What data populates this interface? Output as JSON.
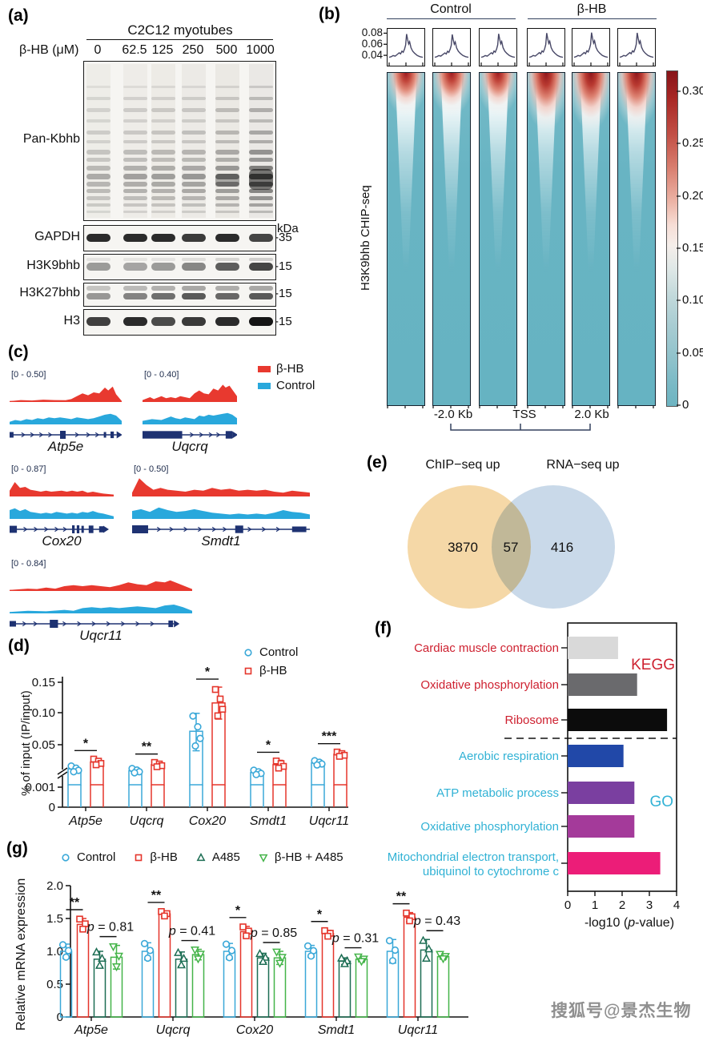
{
  "figure": {
    "watermark": "搜狐号@景杰生物"
  },
  "panels": {
    "a": {
      "label": "(a)",
      "header": "C2C12 myotubes",
      "dose_label": "β-HB (μM)",
      "doses": [
        "0",
        "62.5",
        "125",
        "250",
        "500",
        "1000"
      ],
      "kda_unit": "kDa",
      "rows": [
        {
          "name": "Pan-Kbhb",
          "marker": ""
        },
        {
          "name": "GAPDH",
          "marker": "-35"
        },
        {
          "name": "H3K9bhb",
          "marker": "-15"
        },
        {
          "name": "H3K27bhb",
          "marker": "-15"
        },
        {
          "name": "H3",
          "marker": "-15"
        }
      ]
    },
    "b": {
      "label": "(b)",
      "group_labels": [
        "Control",
        "β-HB"
      ],
      "replicates_per_group": 3,
      "profile_yticks": [
        "0.08",
        "0.06",
        "0.04"
      ],
      "y_axis_label": "H3K9bhb CHIP-seq",
      "x_tick_labels": [
        "-2.0 Kb",
        "TSS",
        "2.0 Kb"
      ],
      "colorbar_ticks": [
        "0.30",
        "0.25",
        "0.20",
        "0.15",
        "0.10",
        "0.05",
        "0"
      ]
    },
    "c": {
      "label": "(c)",
      "legend": [
        {
          "label": "β-HB",
          "color": "#e8392f"
        },
        {
          "label": "Control",
          "color": "#29a8dc"
        }
      ],
      "tracks": [
        {
          "gene": "Atp5e",
          "scale": "[0 - 0.50]"
        },
        {
          "gene": "Uqcrq",
          "scale": "[0 - 0.40]"
        },
        {
          "gene": "Cox20",
          "scale": "[0 - 0.87]"
        },
        {
          "gene": "Smdt1",
          "scale": "[0 - 0.50]"
        },
        {
          "gene": "Uqcr11",
          "scale": "[0 - 0.84]"
        }
      ]
    },
    "d": {
      "label": "(d)"
    },
    "e": {
      "label": "(e)"
    },
    "f": {
      "label": "(f)"
    },
    "g": {
      "label": "(g)"
    }
  },
  "chart_data": [
    {
      "id": "b_profile",
      "panel": "b",
      "type": "line",
      "title": "H3K9bhb CHIP-seq signal around TSS",
      "ylim": [
        0.04,
        0.08
      ],
      "yticks": [
        0.08,
        0.06,
        0.04
      ],
      "x_ticks": [
        "-2.0 Kb",
        "TSS",
        "2.0 Kb"
      ],
      "series": [
        {
          "name": "Control",
          "replicates": 3,
          "baseline": 0.04,
          "peak_at_TSS": 0.08
        },
        {
          "name": "β-HB",
          "replicates": 3,
          "baseline": 0.04,
          "peak_at_TSS": 0.082
        }
      ],
      "heatmap_colorbar_range": [
        0,
        0.3
      ]
    },
    {
      "id": "d",
      "panel": "d",
      "type": "bar",
      "ylabel": "% of input (IP/input)",
      "categories": [
        "Atp5e",
        "Uqcrq",
        "Cox20",
        "Smdt1",
        "Uqcr11"
      ],
      "ytick_labels": [
        "0",
        "0.001",
        "0.05",
        "0.10",
        "0.15"
      ],
      "axis_break": true,
      "series": [
        {
          "name": "Control",
          "color": "#3aa8d8",
          "marker": "circle",
          "values": [
            0.022,
            0.02,
            0.071,
            0.018,
            0.029
          ],
          "errors": [
            0.004,
            0.003,
            0.028,
            0.003,
            0.003
          ]
        },
        {
          "name": "β-HB",
          "color": "#e5352b",
          "marker": "square",
          "values": [
            0.03,
            0.027,
            0.116,
            0.027,
            0.039
          ],
          "errors": [
            0.004,
            0.003,
            0.026,
            0.005,
            0.003
          ]
        }
      ],
      "significance": [
        "*",
        "**",
        "*",
        "*",
        "***"
      ]
    },
    {
      "id": "e",
      "panel": "e",
      "type": "venn",
      "sets": [
        {
          "label": "ChIP−seq up",
          "only": 3870,
          "color": "#f5d8a7"
        },
        {
          "label": "RNA−seq up",
          "only": 416,
          "color": "#c9d9e9"
        }
      ],
      "overlap": 57
    },
    {
      "id": "f",
      "panel": "f",
      "type": "bar-horizontal",
      "xlabel": "-log10 (p-value)",
      "xticks": [
        0,
        1,
        2,
        3,
        4
      ],
      "xlim": [
        0,
        4
      ],
      "group_labels": [
        {
          "name": "KEGG",
          "color": "#ce2130"
        },
        {
          "name": "GO",
          "color": "#31b2d5"
        }
      ],
      "bars": [
        {
          "label_lines": [
            "Cardiac muscle contraction"
          ],
          "group": "KEGG",
          "value": 1.85,
          "color": "#d9d9d9"
        },
        {
          "label_lines": [
            "Oxidative phosphorylation"
          ],
          "group": "KEGG",
          "value": 2.55,
          "color": "#6a6a6d"
        },
        {
          "label_lines": [
            "Ribosome"
          ],
          "group": "KEGG",
          "value": 3.65,
          "color": "#0c0c0c"
        },
        {
          "label_lines": [
            "Aerobic respiration"
          ],
          "group": "GO",
          "value": 2.05,
          "color": "#2148a8"
        },
        {
          "label_lines": [
            "ATP metabolic process"
          ],
          "group": "GO",
          "value": 2.45,
          "color": "#7a3fa0"
        },
        {
          "label_lines": [
            "Oxidative phosphorylation"
          ],
          "group": "GO",
          "value": 2.45,
          "color": "#a43a9a"
        },
        {
          "label_lines": [
            "Mitochondrial electron transport,",
            "ubiquinol to cytochrome c"
          ],
          "group": "GO",
          "value": 3.4,
          "color": "#ec1d78"
        }
      ]
    },
    {
      "id": "g",
      "panel": "g",
      "type": "bar",
      "ylabel": "Relative mRNA expression",
      "categories": [
        "Atp5e",
        "Uqcrq",
        "Cox20",
        "Smdt1",
        "Uqcr11"
      ],
      "yticks": [
        0,
        0.5,
        1.0,
        1.5,
        2.0
      ],
      "ylim": [
        0,
        2.0
      ],
      "series": [
        {
          "name": "Control",
          "color": "#3aa8d8",
          "marker": "circle",
          "values": [
            1.0,
            1.0,
            1.0,
            1.0,
            1.0
          ],
          "errors": [
            0.11,
            0.13,
            0.12,
            0.09,
            0.18
          ]
        },
        {
          "name": "β-HB",
          "color": "#e5352b",
          "marker": "square",
          "values": [
            1.41,
            1.57,
            1.3,
            1.27,
            1.52
          ],
          "errors": [
            0.09,
            0.04,
            0.08,
            0.05,
            0.07
          ]
        },
        {
          "name": "A485",
          "color": "#1d6e54",
          "marker": "triangle-up",
          "values": [
            0.88,
            0.88,
            0.9,
            0.85,
            1.02
          ],
          "errors": [
            0.12,
            0.11,
            0.07,
            0.05,
            0.16
          ]
        },
        {
          "name": "β-HB + A485",
          "color": "#44b449",
          "marker": "triangle-down",
          "values": [
            0.91,
            0.95,
            0.9,
            0.88,
            0.92
          ],
          "errors": [
            0.18,
            0.08,
            0.1,
            0.04,
            0.04
          ]
        }
      ],
      "significance": [
        "**",
        "**",
        "*",
        "*",
        "**"
      ],
      "p_values": [
        "p = 0.81",
        "p = 0.41",
        "p = 0.85",
        "p = 0.31",
        "p = 0.43"
      ]
    }
  ]
}
